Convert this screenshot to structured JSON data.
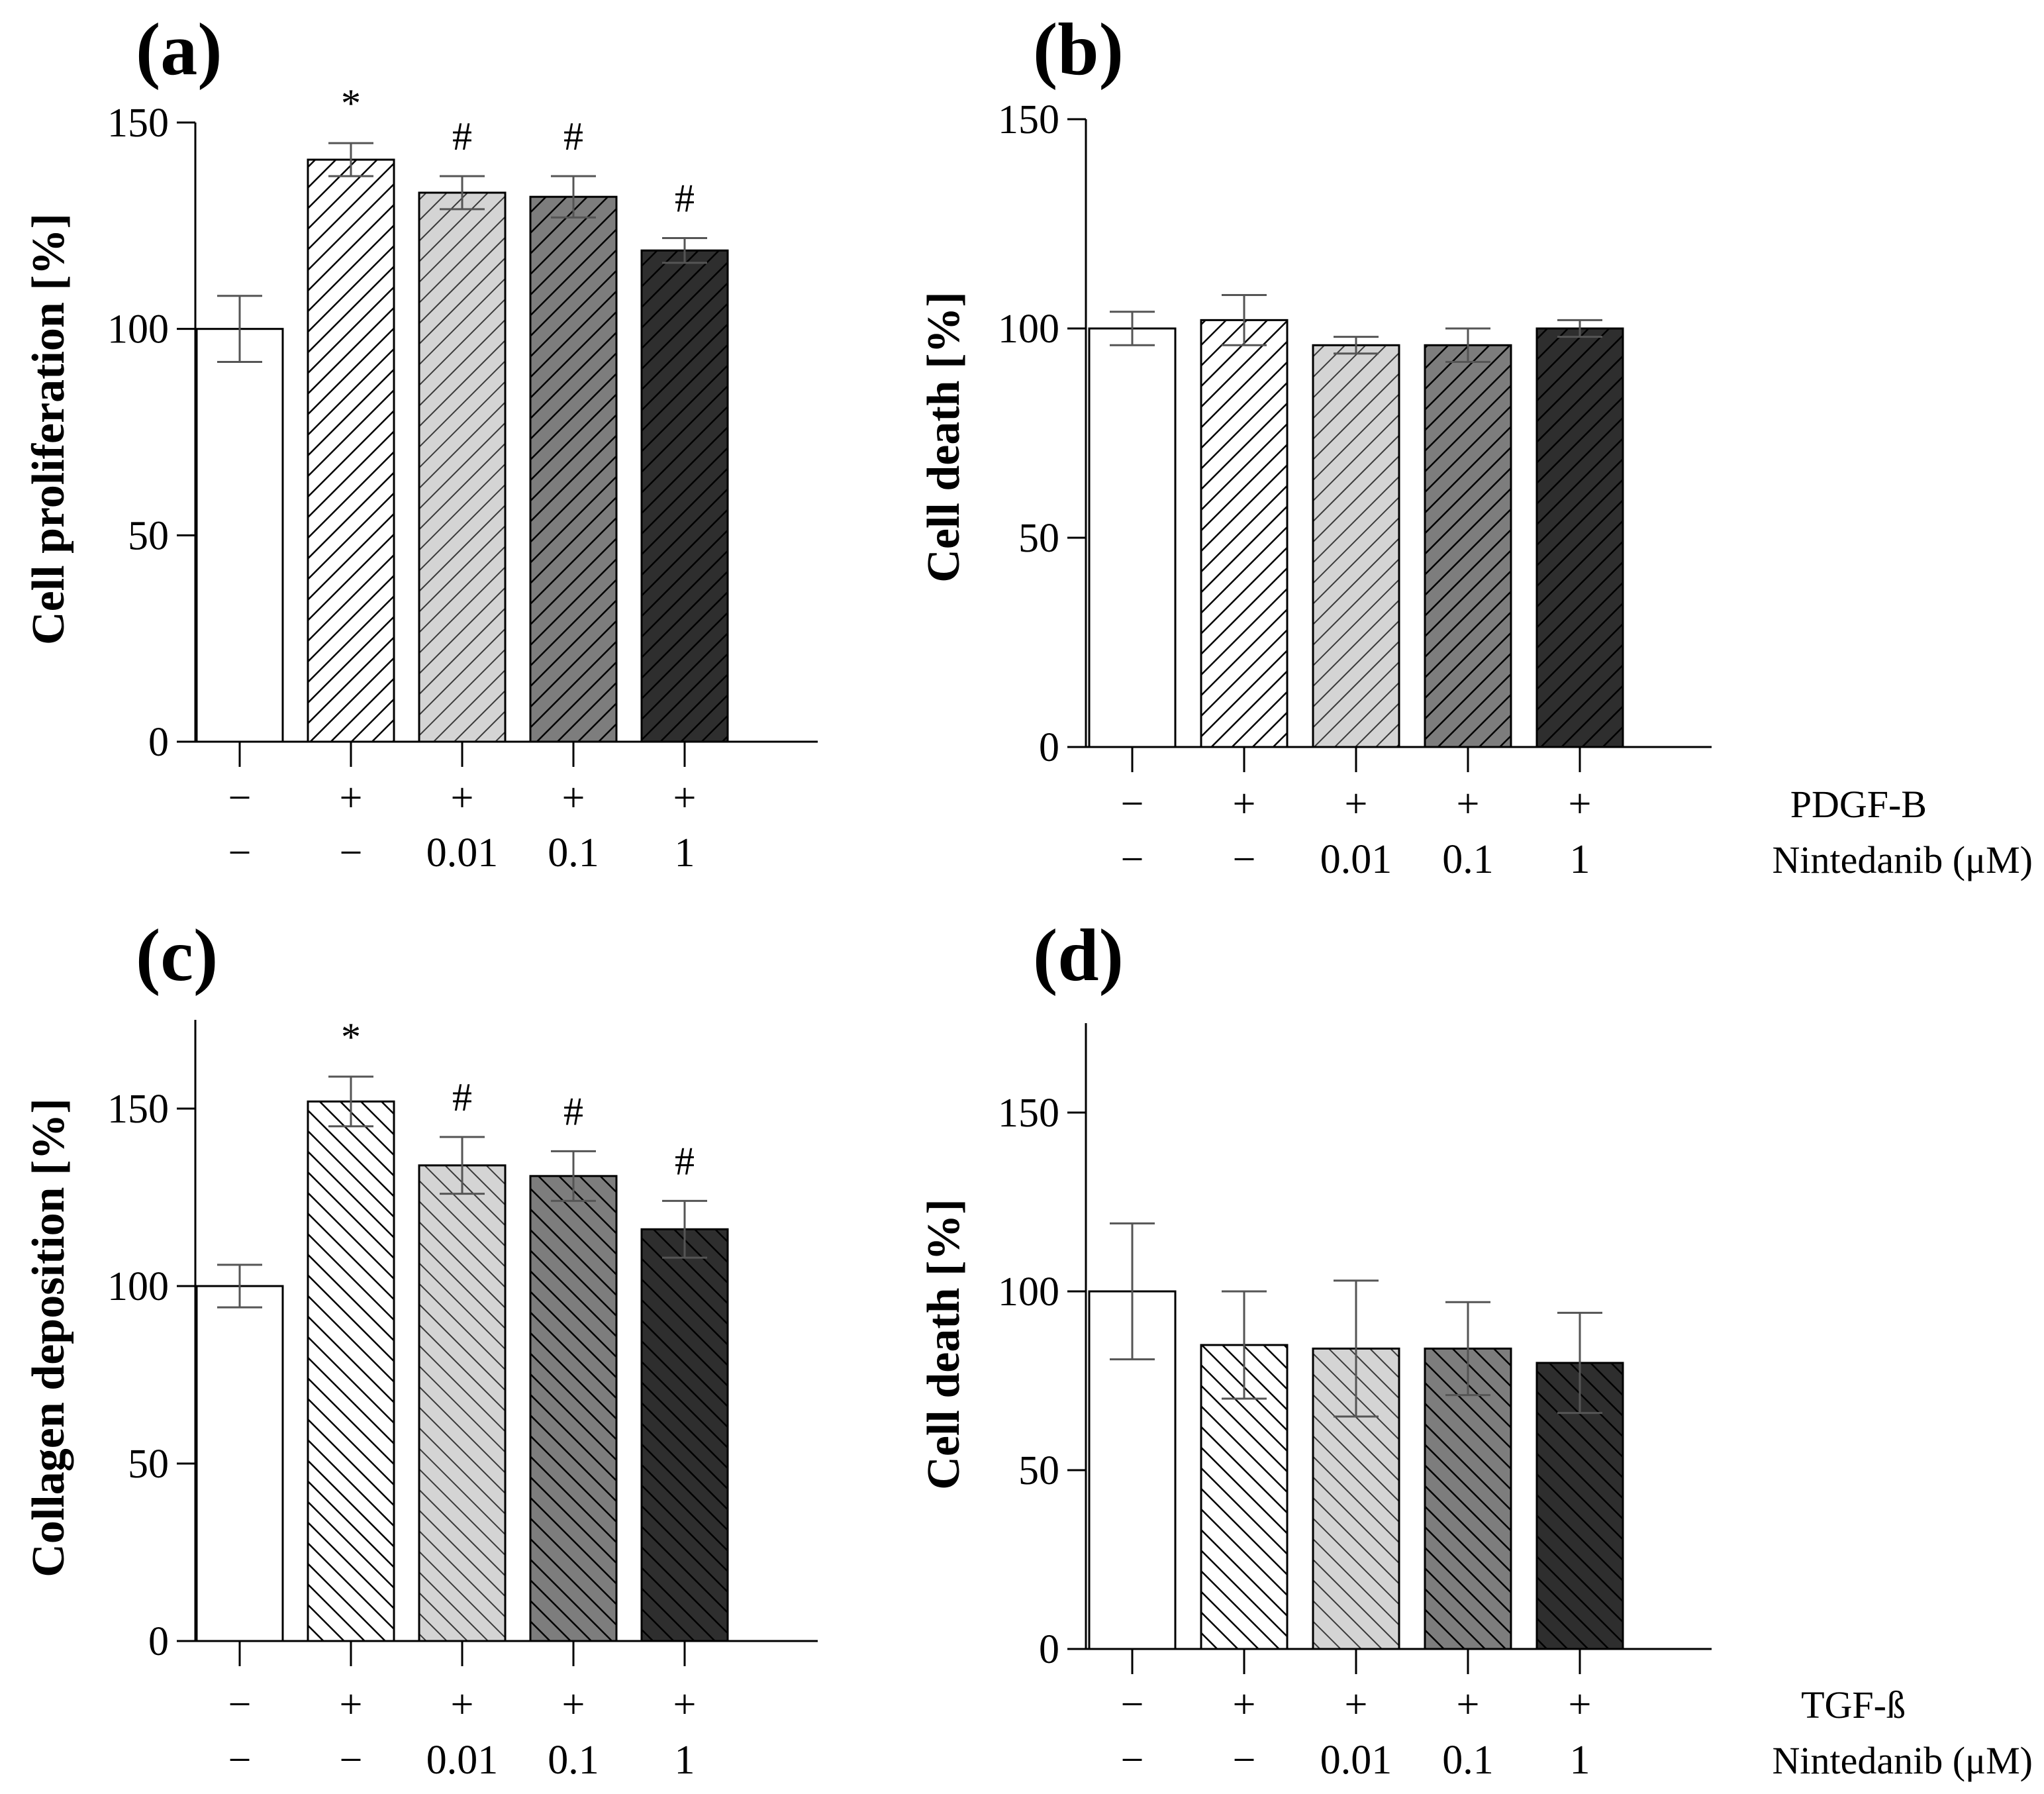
{
  "chart_data": [
    {
      "panel": "(a)",
      "type": "bar",
      "ylabel": "Cell proliferation [%]",
      "ylim": [
        0,
        150
      ],
      "yticks": [
        0,
        50,
        100,
        150
      ],
      "categories": [
        "−/−",
        "+/−",
        "+/0.01",
        "+/0.1",
        "+/1"
      ],
      "values": [
        100,
        141,
        133,
        132,
        119
      ],
      "errors": [
        8,
        4,
        4,
        5,
        3
      ],
      "significance": [
        "",
        "*",
        "#",
        "#",
        "#"
      ],
      "row1": [
        "−",
        "+",
        "+",
        "+",
        "+"
      ],
      "row2": [
        "−",
        "−",
        "0.01",
        "0.1",
        "1"
      ]
    },
    {
      "panel": "(b)",
      "type": "bar",
      "ylabel": "Cell death [%]",
      "ylim": [
        0,
        150
      ],
      "yticks": [
        0,
        50,
        100,
        150
      ],
      "categories": [
        "−/−",
        "+/−",
        "+/0.01",
        "+/0.1",
        "+/1"
      ],
      "values": [
        100,
        102,
        96,
        96,
        100
      ],
      "errors": [
        4,
        6,
        2,
        4,
        2
      ],
      "significance": [
        "",
        "",
        "",
        "",
        ""
      ],
      "row1": [
        "−",
        "+",
        "+",
        "+",
        "+"
      ],
      "row2": [
        "−",
        "−",
        "0.01",
        "0.1",
        "1"
      ],
      "row1_name": "PDGF-B",
      "row2_name": "Nintedanib (μM)"
    },
    {
      "panel": "(c)",
      "type": "bar",
      "ylabel": "Collagen deposition [%]",
      "ylim": [
        0,
        175
      ],
      "yticks": [
        0,
        50,
        100,
        150
      ],
      "categories": [
        "−/−",
        "+/−",
        "+/0.01",
        "+/0.1",
        "+/1"
      ],
      "values": [
        100,
        152,
        134,
        131,
        116
      ],
      "errors": [
        6,
        7,
        8,
        7,
        8
      ],
      "significance": [
        "",
        "*",
        "#",
        "#",
        "#"
      ],
      "row1": [
        "−",
        "+",
        "+",
        "+",
        "+"
      ],
      "row2": [
        "−",
        "−",
        "0.01",
        "0.1",
        "1"
      ]
    },
    {
      "panel": "(d)",
      "type": "bar",
      "ylabel": "Cell death [%]",
      "ylim": [
        0,
        175
      ],
      "yticks": [
        0,
        50,
        100,
        150
      ],
      "categories": [
        "−/−",
        "+/−",
        "+/0.01",
        "+/0.1",
        "+/1"
      ],
      "values": [
        100,
        85,
        84,
        84,
        80
      ],
      "errors": [
        19,
        15,
        19,
        13,
        14
      ],
      "significance": [
        "",
        "",
        "",
        "",
        ""
      ],
      "row1": [
        "−",
        "+",
        "+",
        "+",
        "+"
      ],
      "row2": [
        "−",
        "−",
        "0.01",
        "0.1",
        "1"
      ],
      "row1_name": "TGF-ß",
      "row2_name": "Nintedanib (μM)"
    }
  ],
  "colors": {
    "bar_fills": [
      "#ffffff",
      "#ffffff",
      "#d4d4d4",
      "#7d7d7d",
      "#2e2e2e"
    ],
    "hatch_strokes": [
      "none",
      "#000000",
      "#3a3a3a",
      "#000000",
      "#000000"
    ],
    "error_bar": "#555555"
  }
}
